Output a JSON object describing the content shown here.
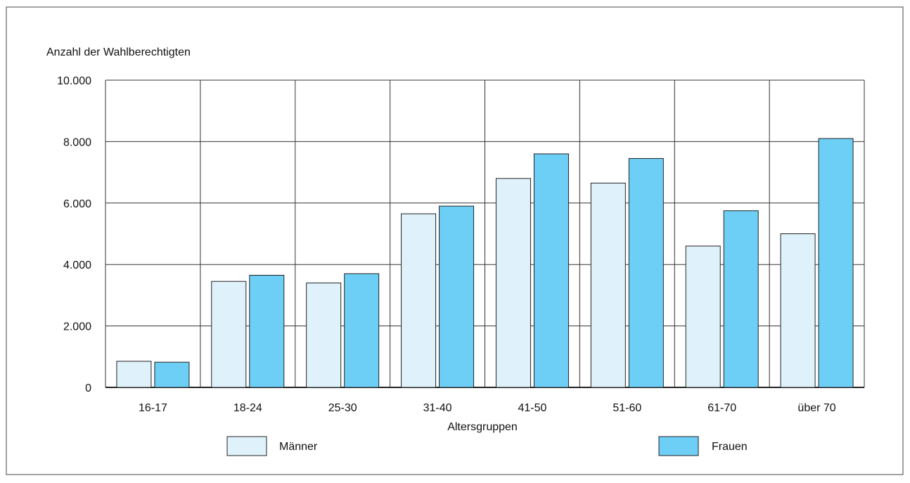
{
  "chart_data": {
    "type": "bar",
    "title": "",
    "ylabel": "Anzahl der Wahlberechtigten",
    "xlabel": "Altersgruppen",
    "ylim": [
      0,
      10000
    ],
    "yticks": [
      0,
      2000,
      4000,
      6000,
      8000,
      10000
    ],
    "ytick_labels": [
      "0",
      "2.000",
      "4.000",
      "6.000",
      "8.000",
      "10.000"
    ],
    "grid": true,
    "legend_position": "bottom",
    "categories": [
      "16-17",
      "18-24",
      "25-30",
      "31-40",
      "41-50",
      "51-60",
      "61-70",
      "über 70"
    ],
    "series": [
      {
        "name": "Männer",
        "color": "#dff2fc",
        "values": [
          850,
          3450,
          3400,
          5650,
          6800,
          6650,
          4600,
          5000
        ]
      },
      {
        "name": "Frauen",
        "color": "#6dcff6",
        "values": [
          820,
          3650,
          3700,
          5900,
          7600,
          7450,
          5750,
          8100
        ]
      }
    ]
  }
}
